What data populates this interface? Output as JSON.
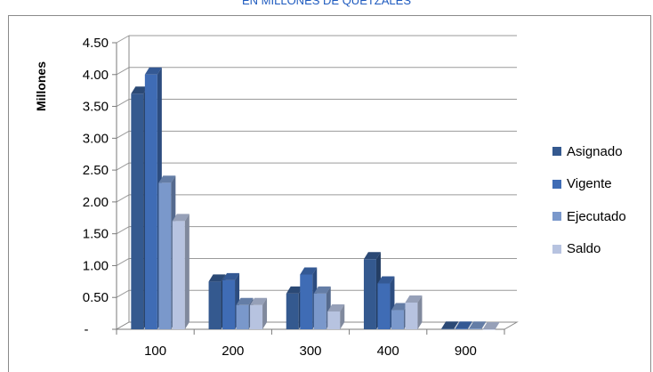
{
  "chart_data": {
    "type": "bar",
    "title": "EN MILLONES DE QUETZALES",
    "ylabel": "Millones",
    "xlabel": "",
    "categories": [
      "100",
      "200",
      "300",
      "400",
      "900"
    ],
    "y_ticks": [
      "-",
      "0.50",
      "1.00",
      "1.50",
      "2.00",
      "2.50",
      "3.00",
      "3.50",
      "4.00",
      "4.50"
    ],
    "ylim": [
      0,
      4.5
    ],
    "grid": true,
    "legend_position": "right",
    "series": [
      {
        "name": "Asignado",
        "color": "#34598f",
        "values": [
          3.7,
          0.75,
          0.56,
          1.1,
          0.01
        ]
      },
      {
        "name": "Vigente",
        "color": "#3f6cb5",
        "values": [
          4.0,
          0.77,
          0.86,
          0.72,
          0.01
        ]
      },
      {
        "name": "Ejecutado",
        "color": "#7a98cb",
        "values": [
          2.3,
          0.38,
          0.56,
          0.3,
          0.01
        ]
      },
      {
        "name": "Saldo",
        "color": "#b7c3e0",
        "values": [
          1.7,
          0.38,
          0.28,
          0.42,
          0.0
        ]
      }
    ]
  }
}
